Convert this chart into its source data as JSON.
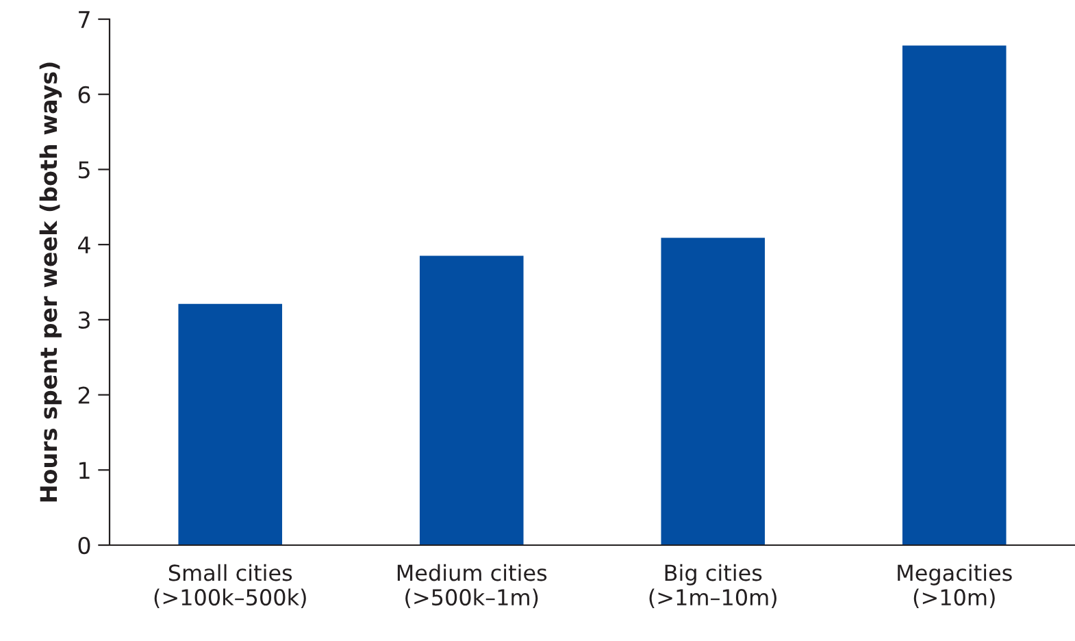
{
  "chart_data": {
    "type": "bar",
    "ylabel": "Hours spent per week (both ways)",
    "categories": [
      "Small cities\n(>100k–500k)",
      "Medium cities\n(>500k–1m)",
      "Big cities\n(>1m–10m)",
      "Megacities\n(>10m)"
    ],
    "values": [
      3.21,
      3.85,
      4.09,
      6.65
    ],
    "color": "#034ea2",
    "ylim": [
      0,
      7
    ],
    "yticks": [
      0,
      1,
      2,
      3,
      4,
      5,
      6,
      7
    ],
    "grid": false,
    "legend": false
  }
}
